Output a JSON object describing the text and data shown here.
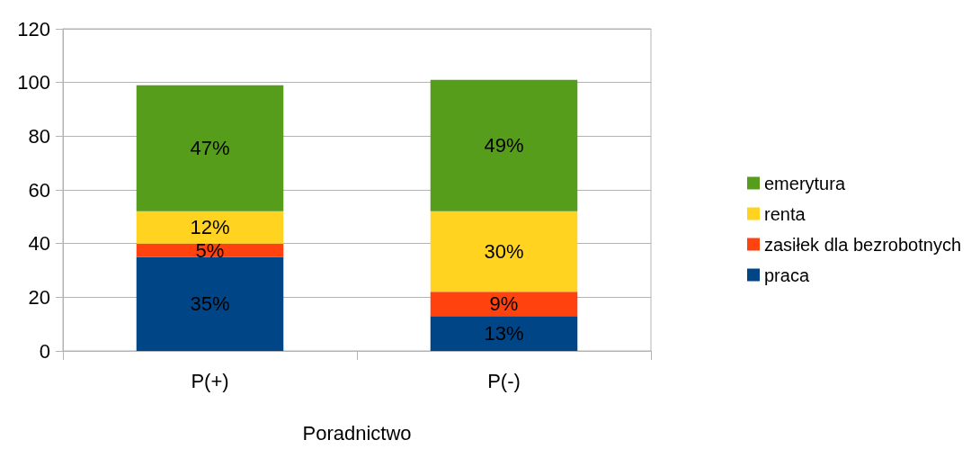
{
  "chart_data": {
    "type": "bar",
    "stacked": true,
    "xlabel": "Poradnictwo",
    "categories": [
      "P(+)",
      "P(-)"
    ],
    "series": [
      {
        "name": "praca",
        "color": "#004586",
        "values": [
          35,
          13
        ],
        "value_labels": [
          "35%",
          "13%"
        ]
      },
      {
        "name": "zasiłek dla bezrobotnych",
        "color": "#ff420e",
        "values": [
          5,
          9
        ],
        "value_labels": [
          "5%",
          "9%"
        ]
      },
      {
        "name": "renta",
        "color": "#ffd320",
        "values": [
          12,
          30
        ],
        "value_labels": [
          "12%",
          "30%"
        ]
      },
      {
        "name": "emerytura",
        "color": "#579d1c",
        "values": [
          47,
          49
        ],
        "value_labels": [
          "47%",
          "49%"
        ]
      }
    ],
    "ylim": [
      0,
      120
    ],
    "yticks": [
      0,
      20,
      40,
      60,
      80,
      100,
      120
    ],
    "grid": "y",
    "legend": "right"
  }
}
